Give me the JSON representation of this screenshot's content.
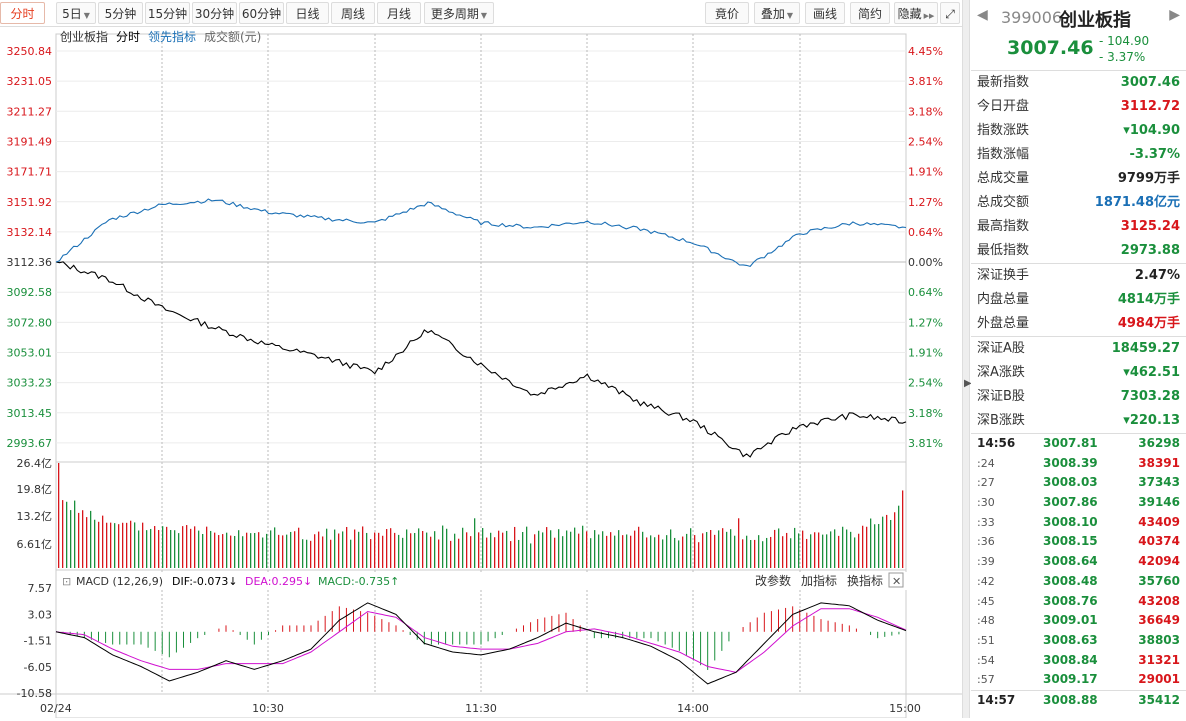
{
  "toolbar": {
    "period_tabs": [
      {
        "label": "分时",
        "active": true,
        "caret": false
      },
      {
        "label": "5日",
        "active": false,
        "caret": true
      },
      {
        "label": "5分钟",
        "active": false,
        "caret": false
      },
      {
        "label": "15分钟",
        "active": false,
        "caret": false
      },
      {
        "label": "30分钟",
        "active": false,
        "caret": false
      },
      {
        "label": "60分钟",
        "active": false,
        "caret": false
      },
      {
        "label": "日线",
        "active": false,
        "caret": false
      },
      {
        "label": "周线",
        "active": false,
        "caret": false
      },
      {
        "label": "月线",
        "active": false,
        "caret": false
      },
      {
        "label": "更多周期",
        "active": false,
        "caret": true
      }
    ],
    "right_buttons": [
      {
        "label": "竟价",
        "caret": false
      },
      {
        "label": "叠加",
        "caret": true
      },
      {
        "label": "画线",
        "caret": false
      },
      {
        "label": "简约",
        "caret": false
      },
      {
        "label": "隐藏",
        "caret": false,
        "icon": "double-chevron-right-icon"
      }
    ],
    "fullscreen_icon": "expand-icon"
  },
  "main_chart": {
    "legend": [
      {
        "text": "创业板指",
        "color": "#333333"
      },
      {
        "text": "分时",
        "color": "#000000"
      },
      {
        "text": "领先指标",
        "color": "#1a6fb5"
      },
      {
        "text": "成交额(元)",
        "color": "#666666"
      }
    ],
    "left_axis": [
      "3250.84",
      "3231.05",
      "3211.27",
      "3191.49",
      "3171.71",
      "3151.92",
      "3132.14",
      "3112.36",
      "3092.58",
      "3072.80",
      "3053.01",
      "3033.23",
      "3013.45",
      "2993.67"
    ],
    "right_axis": [
      "4.45%",
      "3.81%",
      "3.18%",
      "2.54%",
      "1.91%",
      "1.27%",
      "0.64%",
      "0.00%",
      "0.64%",
      "1.27%",
      "1.91%",
      "2.54%",
      "3.18%",
      "3.81%"
    ],
    "colors": {
      "up": "#d8161b",
      "down": "#1a8f3c",
      "price_line": "#000000",
      "lead_line": "#1a6fb5",
      "grid": "#e5e5e5"
    }
  },
  "volume_chart": {
    "axis_labels": [
      "26.4亿",
      "19.8亿",
      "13.2亿",
      "6.61亿"
    ],
    "unit": "亿"
  },
  "macd": {
    "title": "MACD (12,26,9)",
    "dif_label": "DIF:-0.073",
    "dif_arrow": "↓",
    "dea_label": "DEA:0.295",
    "dea_arrow": "↓",
    "macd_label": "MACD:-0.735",
    "macd_arrow": "↑",
    "axis_labels": [
      "7.57",
      "3.03",
      "-1.51",
      "-6.05",
      "-10.58"
    ],
    "buttons": [
      "改参数",
      "加指标",
      "换指标"
    ],
    "close_icon": "close-icon",
    "colors": {
      "dif": "#000000",
      "dea": "#d010d0",
      "macd": "#1a8f3c"
    }
  },
  "time_axis": [
    "02/24",
    "10:30",
    "11:30",
    "14:00",
    "15:00"
  ],
  "chart_data": {
    "type": "line",
    "x": [
      "09:30",
      "09:45",
      "10:00",
      "10:15",
      "10:30",
      "10:45",
      "11:00",
      "11:15",
      "11:30",
      "13:15",
      "13:30",
      "13:45",
      "14:00",
      "14:15",
      "14:30",
      "14:45",
      "15:00"
    ],
    "series": [
      {
        "name": "分时",
        "values": [
          3112.4,
          3101,
          3082,
          3069,
          3058,
          3050,
          3040,
          3068,
          3045,
          3025,
          3038,
          3020,
          3008,
          2985,
          3005,
          3012,
          3007.46
        ]
      },
      {
        "name": "领先指标",
        "values": [
          3112.4,
          3140,
          3150,
          3153,
          3145,
          3141,
          3138,
          3151,
          3138,
          3135,
          3139,
          3134,
          3125,
          3109,
          3131,
          3138,
          3135
        ]
      }
    ],
    "ylim": [
      2983.78,
      3250.84
    ],
    "volume_max_yi": 26.4,
    "macd_ylim": [
      -10.58,
      7.57
    ]
  },
  "panel": {
    "code": "399006",
    "name": "创业板指",
    "price": "3007.46",
    "change": "- 104.90",
    "change_pct": "- 3.37%",
    "stats": [
      {
        "k": "最新指数",
        "v": "3007.46",
        "c": "g"
      },
      {
        "k": "今日开盘",
        "v": "3112.72",
        "c": "r"
      },
      {
        "k": "指数涨跌",
        "v": "▾104.90",
        "c": "g"
      },
      {
        "k": "指数涨幅",
        "v": "-3.37%",
        "c": "g"
      },
      {
        "k": "总成交量",
        "v": "9799万手",
        "c": "d"
      },
      {
        "k": "总成交额",
        "v": "1871.48亿元",
        "c": "b"
      },
      {
        "k": "最高指数",
        "v": "3125.24",
        "c": "r"
      },
      {
        "k": "最低指数",
        "v": "2973.88",
        "c": "g"
      }
    ],
    "stats2": [
      {
        "k": "深证换手",
        "v": "2.47%",
        "c": "d"
      },
      {
        "k": "内盘总量",
        "v": "4814万手",
        "c": "g"
      },
      {
        "k": "外盘总量",
        "v": "4984万手",
        "c": "r"
      }
    ],
    "stats3": [
      {
        "k": "深证A股",
        "v": "18459.27",
        "c": "g"
      },
      {
        "k": "深A涨跌",
        "v": "▾462.51",
        "c": "g"
      },
      {
        "k": "深证B股",
        "v": "7303.28",
        "c": "g"
      },
      {
        "k": "深B涨跌",
        "v": "▾220.13",
        "c": "g"
      }
    ],
    "ticks": [
      {
        "t": "14:56",
        "p": "3007.81",
        "v": "36298",
        "c": "g",
        "big": true
      },
      {
        "t": ":24",
        "p": "3008.39",
        "v": "38391",
        "c": "r",
        "big": false
      },
      {
        "t": ":27",
        "p": "3008.03",
        "v": "37343",
        "c": "g",
        "big": false
      },
      {
        "t": ":30",
        "p": "3007.86",
        "v": "39146",
        "c": "g",
        "big": false
      },
      {
        "t": ":33",
        "p": "3008.10",
        "v": "43409",
        "c": "r",
        "big": false
      },
      {
        "t": ":36",
        "p": "3008.15",
        "v": "40374",
        "c": "r",
        "big": false
      },
      {
        "t": ":39",
        "p": "3008.64",
        "v": "42094",
        "c": "r",
        "big": false
      },
      {
        "t": ":42",
        "p": "3008.48",
        "v": "35760",
        "c": "g",
        "big": false
      },
      {
        "t": ":45",
        "p": "3008.76",
        "v": "43208",
        "c": "r",
        "big": false
      },
      {
        "t": ":48",
        "p": "3009.01",
        "v": "36649",
        "c": "r",
        "big": false
      },
      {
        "t": ":51",
        "p": "3008.63",
        "v": "38803",
        "c": "g",
        "big": false
      },
      {
        "t": ":54",
        "p": "3008.84",
        "v": "31321",
        "c": "r",
        "big": false
      },
      {
        "t": ":57",
        "p": "3009.17",
        "v": "29001",
        "c": "r",
        "big": false
      },
      {
        "t": "14:57",
        "p": "3008.88",
        "v": "35412",
        "c": "g",
        "big": true
      }
    ]
  }
}
